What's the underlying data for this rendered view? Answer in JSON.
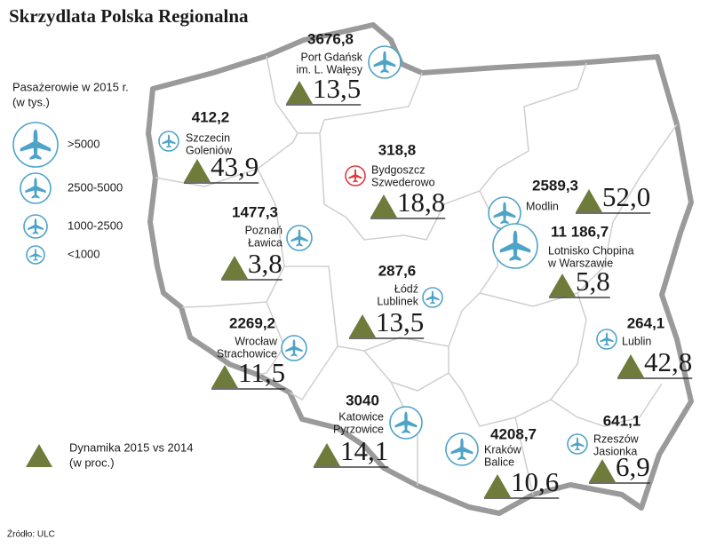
{
  "header": {
    "title": "Skrzydlata Polska Regionalna"
  },
  "legend": {
    "title": [
      "Pasażerowie w 2015 r.",
      "(w tys.)"
    ],
    "icon_color": "#4ea3c8",
    "sizes": [
      {
        "label": ">5000"
      },
      {
        "label": "2500-5000"
      },
      {
        "label": "1000-2500"
      },
      {
        "label": "<1000"
      }
    ],
    "change": {
      "label": [
        "Dynamika 2015 vs 2014",
        "(w proc.)"
      ],
      "color": "#6e7b3b"
    }
  },
  "airports": [
    {
      "passengers": "3676,8",
      "name": [
        "Port Gdańsk",
        "im. L. Wałęsy"
      ],
      "change": "13,5",
      "tier": 1,
      "color": "#4ea3c8"
    },
    {
      "passengers": "412,2",
      "name": [
        "Szczecin",
        "Goleniów"
      ],
      "change": "43,9",
      "tier": 3,
      "color": "#4ea3c8"
    },
    {
      "passengers": "318,8",
      "name": [
        "Bydgoszcz",
        "Szwederowo"
      ],
      "change": "18,8",
      "tier": 3,
      "color": "#e0393e"
    },
    {
      "passengers": "2589,3",
      "name": [
        "Modlin"
      ],
      "change": "52,0",
      "tier": 1,
      "color": "#4ea3c8"
    },
    {
      "passengers": "11 186,7",
      "name": [
        "Lotnisko Chopina",
        "w Warszawie"
      ],
      "change": "5,8",
      "tier": 0,
      "color": "#4ea3c8"
    },
    {
      "passengers": "1477,3",
      "name": [
        "Poznań",
        "Ławica"
      ],
      "change": "3,8",
      "tier": 2,
      "color": "#4ea3c8"
    },
    {
      "passengers": "287,6",
      "name": [
        "Łódź",
        "Lublinek"
      ],
      "change": "13,5",
      "tier": 3,
      "color": "#4ea3c8"
    },
    {
      "passengers": "2269,2",
      "name": [
        "Wrocław",
        "Strachowice"
      ],
      "change": "11,5",
      "tier": 2,
      "color": "#4ea3c8"
    },
    {
      "passengers": "264,1",
      "name": [
        "Lublin"
      ],
      "change": "42,8",
      "tier": 3,
      "color": "#4ea3c8"
    },
    {
      "passengers": "3040",
      "name": [
        "Katowice",
        "Pyrzowice"
      ],
      "change": "14,1",
      "tier": 1,
      "color": "#4ea3c8"
    },
    {
      "passengers": "4208,7",
      "name": [
        "Kraków",
        "Balice"
      ],
      "change": "10,6",
      "tier": 1,
      "color": "#4ea3c8"
    },
    {
      "passengers": "641,1",
      "name": [
        "Rzeszów",
        "Jasionka"
      ],
      "change": "6,9",
      "tier": 3,
      "color": "#4ea3c8"
    }
  ],
  "footer": {
    "source": "Źródło: ULC"
  }
}
